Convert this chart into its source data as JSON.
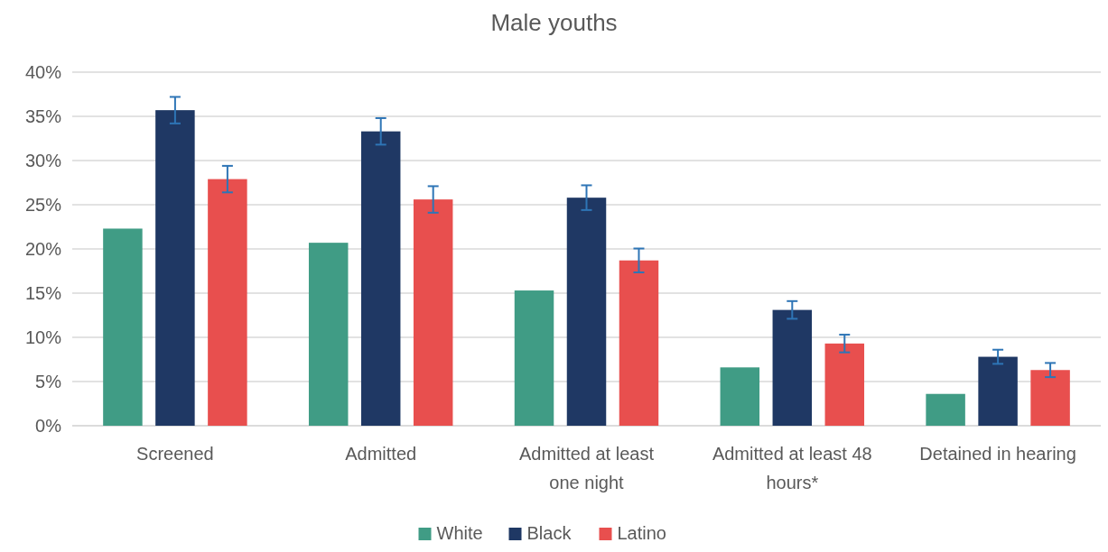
{
  "chart_data": {
    "type": "bar",
    "title": "Male youths",
    "categories": [
      "Screened",
      "Admitted",
      "Admitted at least one night",
      "Admitted at least 48 hours*",
      "Detained in hearing"
    ],
    "series": [
      {
        "name": "White",
        "color": "#409c85",
        "values": [
          22.3,
          20.7,
          15.3,
          6.6,
          3.6
        ]
      },
      {
        "name": "Black",
        "color": "#1f3864",
        "values": [
          35.7,
          33.3,
          25.8,
          13.1,
          7.8
        ],
        "errors": [
          1.5,
          1.5,
          1.4,
          1.0,
          0.8
        ]
      },
      {
        "name": "Latino",
        "color": "#e84f4e",
        "values": [
          27.9,
          25.6,
          18.7,
          9.3,
          6.3
        ],
        "errors": [
          1.5,
          1.5,
          1.35,
          1.0,
          0.8
        ]
      }
    ],
    "ylim": [
      0,
      40
    ],
    "yticks": [
      {
        "value": 0,
        "label": "0%"
      },
      {
        "value": 5,
        "label": "5%"
      },
      {
        "value": 10,
        "label": "10%"
      },
      {
        "value": 15,
        "label": "15%"
      },
      {
        "value": 20,
        "label": "20%"
      },
      {
        "value": 25,
        "label": "25%"
      },
      {
        "value": 30,
        "label": "30%"
      },
      {
        "value": 35,
        "label": "35%"
      },
      {
        "value": 40,
        "label": "40%"
      }
    ],
    "grid": "y",
    "legend": "bottom"
  }
}
